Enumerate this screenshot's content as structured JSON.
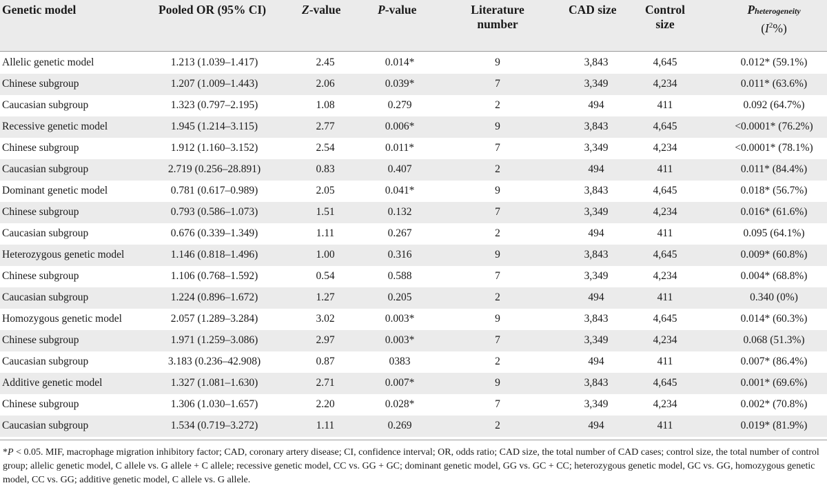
{
  "headers": {
    "genetic_model": "Genetic model",
    "pooled_or": "Pooled OR (95% CI)",
    "z_italic": "Z",
    "z_rest": "-value",
    "p_italic": "P",
    "p_rest": "-value",
    "literature_line1": "Literature",
    "literature_line2": "number",
    "cad_size": "CAD size",
    "control_line1": "Control",
    "control_line2": "size",
    "phet_p": "P",
    "phet_sub": "heterogeneity",
    "phet_i_open": "(",
    "phet_i": "I",
    "phet_sup": "2",
    "phet_pct": "%)"
  },
  "rows": [
    {
      "model": "Allelic genetic model",
      "or": "1.213 (1.039–1.417)",
      "z": "2.45",
      "p": "0.014*",
      "lit": "9",
      "cad": "3,843",
      "ctrl": "4,645",
      "het": "0.012* (59.1%)"
    },
    {
      "model": "Chinese subgroup",
      "or": "1.207 (1.009–1.443)",
      "z": "2.06",
      "p": "0.039*",
      "lit": "7",
      "cad": "3,349",
      "ctrl": "4,234",
      "het": "0.011* (63.6%)"
    },
    {
      "model": "Caucasian subgroup",
      "or": "1.323 (0.797–2.195)",
      "z": "1.08",
      "p": "0.279",
      "lit": "2",
      "cad": "494",
      "ctrl": "411",
      "het": "0.092 (64.7%)"
    },
    {
      "model": "Recessive genetic model",
      "or": "1.945 (1.214–3.115)",
      "z": "2.77",
      "p": "0.006*",
      "lit": "9",
      "cad": "3,843",
      "ctrl": "4,645",
      "het": "<0.0001* (76.2%)"
    },
    {
      "model": "Chinese subgroup",
      "or": "1.912 (1.160–3.152)",
      "z": "2.54",
      "p": "0.011*",
      "lit": "7",
      "cad": "3,349",
      "ctrl": "4,234",
      "het": "<0.0001* (78.1%)"
    },
    {
      "model": "Caucasian subgroup",
      "or": "2.719 (0.256–28.891)",
      "z": "0.83",
      "p": "0.407",
      "lit": "2",
      "cad": "494",
      "ctrl": "411",
      "het": "0.011* (84.4%)"
    },
    {
      "model": "Dominant genetic model",
      "or": "0.781 (0.617–0.989)",
      "z": "2.05",
      "p": "0.041*",
      "lit": "9",
      "cad": "3,843",
      "ctrl": "4,645",
      "het": "0.018* (56.7%)"
    },
    {
      "model": "Chinese subgroup",
      "or": "0.793 (0.586–1.073)",
      "z": "1.51",
      "p": "0.132",
      "lit": "7",
      "cad": "3,349",
      "ctrl": "4,234",
      "het": "0.016* (61.6%)"
    },
    {
      "model": "Caucasian subgroup",
      "or": "0.676 (0.339–1.349)",
      "z": "1.11",
      "p": "0.267",
      "lit": "2",
      "cad": "494",
      "ctrl": "411",
      "het": "0.095 (64.1%)"
    },
    {
      "model": "Heterozygous genetic model",
      "or": "1.146 (0.818–1.496)",
      "z": "1.00",
      "p": "0.316",
      "lit": "9",
      "cad": "3,843",
      "ctrl": "4,645",
      "het": "0.009* (60.8%)"
    },
    {
      "model": "Chinese subgroup",
      "or": "1.106 (0.768–1.592)",
      "z": "0.54",
      "p": "0.588",
      "lit": "7",
      "cad": "3,349",
      "ctrl": "4,234",
      "het": "0.004* (68.8%)"
    },
    {
      "model": "Caucasian subgroup",
      "or": "1.224 (0.896–1.672)",
      "z": "1.27",
      "p": "0.205",
      "lit": "2",
      "cad": "494",
      "ctrl": "411",
      "het": "0.340 (0%)"
    },
    {
      "model": "Homozygous genetic model",
      "or": "2.057 (1.289–3.284)",
      "z": "3.02",
      "p": "0.003*",
      "lit": "9",
      "cad": "3,843",
      "ctrl": "4,645",
      "het": "0.014* (60.3%)"
    },
    {
      "model": "Chinese subgroup",
      "or": "1.971 (1.259–3.086)",
      "z": "2.97",
      "p": "0.003*",
      "lit": "7",
      "cad": "3,349",
      "ctrl": "4,234",
      "het": "0.068 (51.3%)"
    },
    {
      "model": "Caucasian subgroup",
      "or": "3.183 (0.236–42.908)",
      "z": "0.87",
      "p": "0383",
      "lit": "2",
      "cad": "494",
      "ctrl": "411",
      "het": "0.007* (86.4%)"
    },
    {
      "model": "Additive genetic model",
      "or": "1.327 (1.081–1.630)",
      "z": "2.71",
      "p": "0.007*",
      "lit": "9",
      "cad": "3,843",
      "ctrl": "4,645",
      "het": "0.001* (69.6%)"
    },
    {
      "model": "Chinese subgroup",
      "or": "1.306 (1.030–1.657)",
      "z": "2.20",
      "p": "0.028*",
      "lit": "7",
      "cad": "3,349",
      "ctrl": "4,234",
      "het": "0.002* (70.8%)"
    },
    {
      "model": "Caucasian subgroup",
      "or": "1.534 (0.719–3.272)",
      "z": "1.11",
      "p": "0.269",
      "lit": "2",
      "cad": "494",
      "ctrl": "411",
      "het": "0.019* (81.9%)"
    }
  ],
  "footnote": {
    "star": "*",
    "p": "P",
    "text": " < 0.05. MIF, macrophage migration inhibitory factor; CAD, coronary artery disease; CI, confidence interval; OR, odds ratio; CAD size, the total number of CAD cases; control size, the total number of control group; allelic genetic model, C allele vs. G allele + C allele; recessive genetic model, CC vs. GG + GC; dominant genetic model, GG vs. GC + CC; heterozygous genetic model, GC vs. GG, homozygous genetic model, CC vs. GG; additive genetic model, C allele vs. G allele."
  },
  "colors": {
    "header_bg": "#ebebeb",
    "stripe_bg": "#ebebeb",
    "rule": "#9a9a9a",
    "text": "#1a1a1a"
  }
}
